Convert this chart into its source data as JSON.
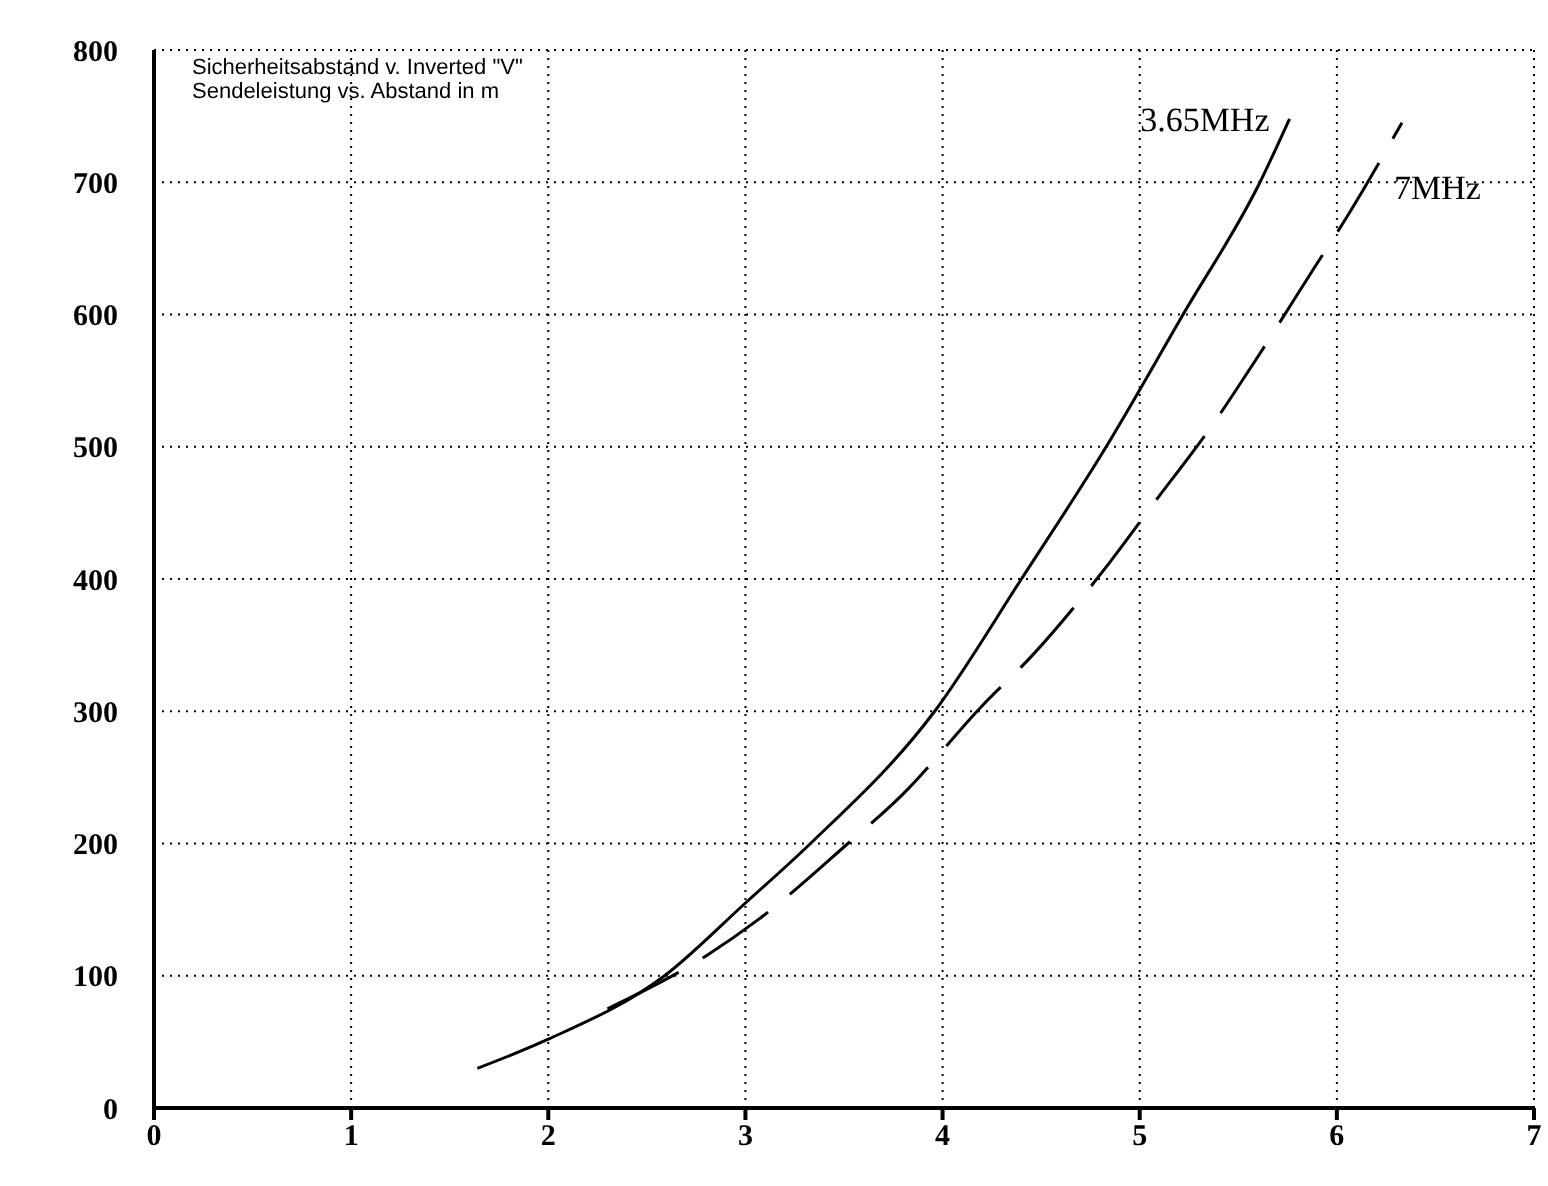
{
  "chart_data": {
    "type": "line",
    "annotations": [
      "Sicherheitsabstand v. Inverted \"V\"",
      "Sendeleistung vs. Abstand in m"
    ],
    "xlim": [
      0,
      7
    ],
    "xticks": [
      0,
      1,
      2,
      3,
      4,
      5,
      6,
      7
    ],
    "ylim": [
      0,
      800
    ],
    "yticks": [
      0,
      100,
      200,
      300,
      400,
      500,
      600,
      700,
      800
    ],
    "grid": true,
    "marker": "none",
    "series": [
      {
        "name": "3.65MHz",
        "color": "#000000",
        "line_style": "solid",
        "x": [
          1.64,
          2,
          2.59,
          3,
          3.33,
          3.96,
          4.4,
          4.83,
          5.22,
          5.61,
          5.76
        ],
        "values": [
          30,
          52,
          100,
          155,
          200,
          300,
          400,
          500,
          600,
          700,
          748
        ]
      },
      {
        "name": "7MHz",
        "color": "#000000",
        "line_style": "dashed",
        "x": [
          2.3,
          2.8,
          3.07,
          3.52,
          3.79,
          4.2,
          4.46,
          4.85,
          5.06,
          5.39,
          5.59,
          5.88,
          6.06,
          6.33
        ],
        "values": [
          75,
          115,
          143,
          200,
          236,
          304,
          343,
          413,
          455,
          521,
          566,
          634,
          676,
          745
        ]
      }
    ]
  }
}
